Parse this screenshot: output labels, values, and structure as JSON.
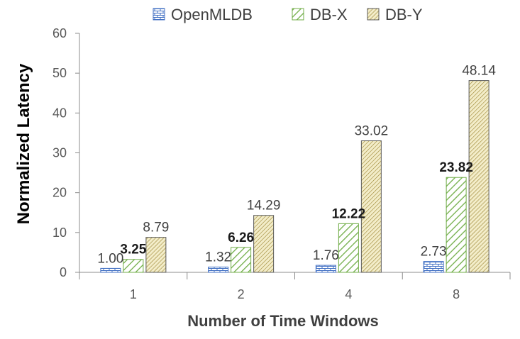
{
  "chart_data": {
    "type": "bar",
    "title": "",
    "xlabel": "Number of Time Windows",
    "ylabel": "Normalized Latency",
    "categories": [
      "1",
      "2",
      "4",
      "8"
    ],
    "ylim": [
      0,
      60
    ],
    "yticks": [
      0,
      10,
      20,
      30,
      40,
      50,
      60
    ],
    "grid": false,
    "legend": "top",
    "series": [
      {
        "name": "OpenMLDB",
        "values": [
          1.0,
          1.32,
          1.76,
          2.73
        ],
        "labels": [
          "1.00",
          "1.32",
          "1.76",
          "2.73"
        ],
        "pattern": "brick",
        "color": "#4472C4",
        "bold_labels": false
      },
      {
        "name": "DB-X",
        "values": [
          3.25,
          6.26,
          12.22,
          23.82
        ],
        "labels": [
          "3.25",
          "6.26",
          "12.22",
          "23.82"
        ],
        "pattern": "diagonal",
        "color": "#70AD47",
        "bold_labels": true
      },
      {
        "name": "DB-Y",
        "values": [
          8.79,
          14.29,
          33.02,
          48.14
        ],
        "labels": [
          "8.79",
          "14.29",
          "33.02",
          "48.14"
        ],
        "pattern": "hatch",
        "color": "#BFA12E",
        "bold_labels": false
      }
    ]
  }
}
